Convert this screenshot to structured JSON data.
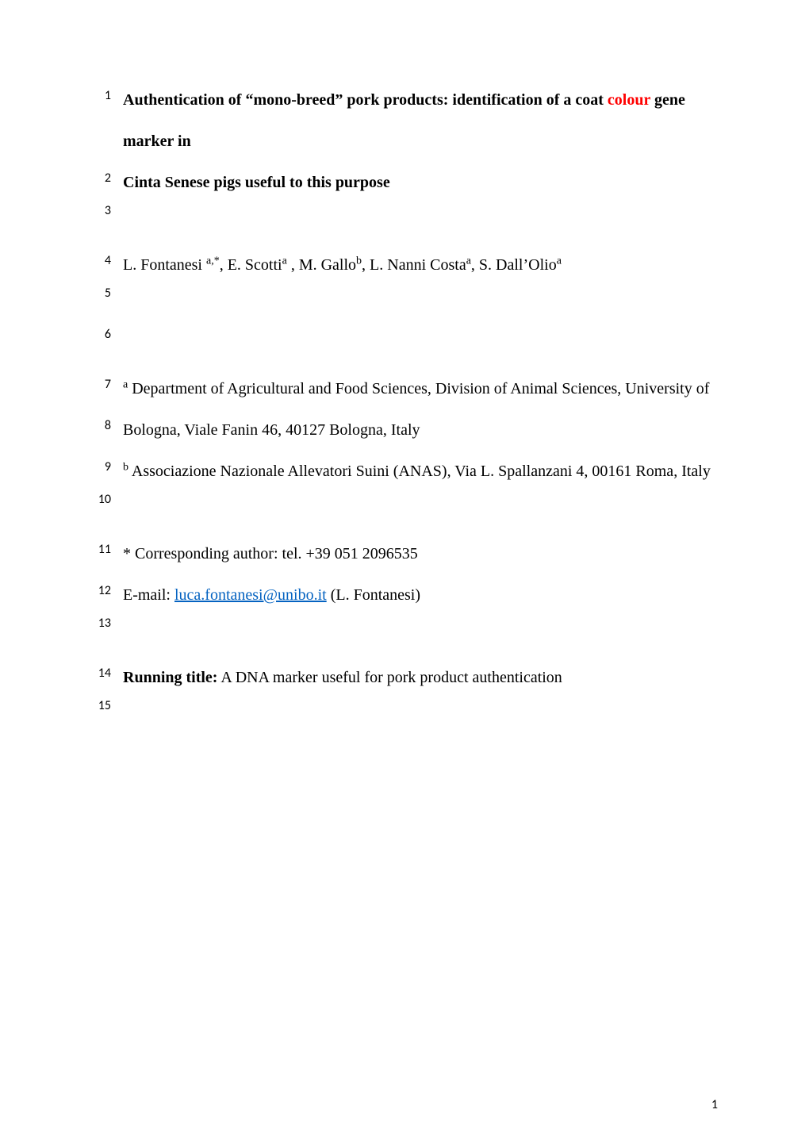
{
  "lines": [
    {
      "num": "1",
      "type": "text",
      "html": true,
      "content": "<span class='bold'>Authentication of &ldquo;mono-breed&rdquo; pork products: identification of a coat </span><span class='bold colour'>colour</span><span class='bold'> gene marker in</span>"
    },
    {
      "num": "2",
      "type": "text",
      "html": true,
      "content": "<span class='bold'>Cinta Senese pigs useful to this purpose</span>"
    },
    {
      "num": "3",
      "type": "blank"
    },
    {
      "num": "4",
      "type": "text",
      "html": true,
      "content": "L. Fontanesi <sup>a,*</sup>, E. Scotti<sup>a</sup> , M. Gallo<sup>b</sup>, L. Nanni Costa<sup>a</sup>, S. Dall&rsquo;Olio<sup>a</sup>"
    },
    {
      "num": "5",
      "type": "blank"
    },
    {
      "num": "6",
      "type": "blank"
    },
    {
      "num": "7",
      "type": "text",
      "html": true,
      "content": "<sup>a</sup> Department of Agricultural and Food Sciences, Division of Animal Sciences, University of"
    },
    {
      "num": "8",
      "type": "text",
      "html": false,
      "content": "Bologna, Viale Fanin 46, 40127 Bologna, Italy"
    },
    {
      "num": "9",
      "type": "text",
      "html": true,
      "content": "<sup>b</sup> Associazione Nazionale Allevatori Suini (ANAS), Via L. Spallanzani 4, 00161 Roma, Italy"
    },
    {
      "num": "10",
      "type": "blank"
    },
    {
      "num": "11",
      "type": "text",
      "html": false,
      "content": "* Corresponding author: tel. +39 051 2096535"
    },
    {
      "num": "12",
      "type": "text",
      "html": true,
      "content": "E-mail: <span class='link'>luca.fontanesi@unibo.it</span> (L. Fontanesi)"
    },
    {
      "num": "13",
      "type": "blank"
    },
    {
      "num": "14",
      "type": "text",
      "html": true,
      "content": "<span class='bold'>Running title:</span> A DNA marker useful for pork product authentication"
    },
    {
      "num": "15",
      "type": "blank"
    }
  ],
  "pageNumber": "1",
  "style": {
    "font_family": "Times New Roman",
    "font_size_pt": 12,
    "line_number_font": "Calibri",
    "text_color": "#000000",
    "highlight_color": "#ff0000",
    "link_color": "#0563c1",
    "background": "#ffffff"
  }
}
